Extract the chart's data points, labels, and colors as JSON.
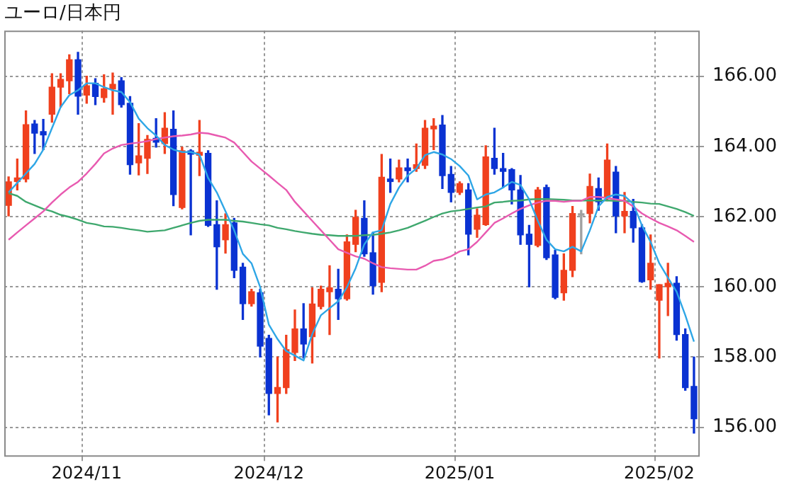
{
  "chart_data": {
    "type": "candlestick",
    "title": "ユーロ/日本円",
    "categories": [
      null,
      null,
      null,
      null,
      null,
      null,
      null,
      null,
      null,
      "2024/11",
      null,
      null,
      null,
      null,
      null,
      null,
      null,
      null,
      null,
      null,
      null,
      null,
      null,
      null,
      null,
      null,
      null,
      null,
      null,
      null,
      "2024/12",
      null,
      null,
      null,
      null,
      null,
      null,
      null,
      null,
      null,
      null,
      null,
      null,
      null,
      null,
      null,
      null,
      null,
      null,
      null,
      null,
      null,
      "2025/01",
      null,
      null,
      null,
      null,
      null,
      null,
      null,
      null,
      null,
      null,
      null,
      null,
      null,
      null,
      null,
      null,
      null,
      null,
      null,
      null,
      null,
      null,
      "2025/02",
      null,
      null,
      null,
      null
    ],
    "ohlc": [
      [
        162.32,
        163.13,
        162.02,
        162.99
      ],
      [
        163.0,
        163.64,
        162.76,
        163.1
      ],
      [
        163.07,
        165.01,
        162.99,
        164.62
      ],
      [
        164.64,
        164.74,
        163.8,
        164.38
      ],
      [
        164.42,
        164.77,
        163.91,
        164.33
      ],
      [
        164.92,
        166.07,
        164.69,
        165.69
      ],
      [
        165.69,
        166.07,
        165.12,
        165.91
      ],
      [
        165.87,
        166.61,
        165.5,
        166.47
      ],
      [
        166.47,
        166.68,
        164.92,
        165.43
      ],
      [
        165.46,
        166.0,
        165.23,
        165.73
      ],
      [
        165.8,
        165.93,
        165.19,
        165.42
      ],
      [
        165.39,
        166.04,
        165.26,
        165.64
      ],
      [
        165.64,
        166.09,
        164.92,
        165.77
      ],
      [
        165.87,
        165.96,
        165.12,
        165.19
      ],
      [
        165.23,
        165.42,
        163.21,
        163.48
      ],
      [
        163.53,
        164.65,
        163.19,
        163.73
      ],
      [
        163.66,
        164.31,
        163.23,
        164.2
      ],
      [
        164.23,
        164.79,
        163.98,
        164.12
      ],
      [
        164.08,
        164.96,
        163.8,
        164.52
      ],
      [
        164.49,
        165.01,
        162.31,
        162.63
      ],
      [
        162.26,
        163.98,
        162.22,
        163.88
      ],
      [
        163.87,
        163.91,
        161.48,
        163.78
      ],
      [
        163.75,
        164.74,
        163.17,
        163.83
      ],
      [
        163.8,
        163.88,
        161.72,
        161.75
      ],
      [
        161.77,
        162.45,
        159.93,
        161.14
      ],
      [
        161.34,
        162.08,
        160.96,
        161.77
      ],
      [
        161.82,
        161.95,
        160.26,
        160.47
      ],
      [
        160.56,
        160.67,
        159.07,
        159.52
      ],
      [
        159.52,
        159.93,
        159.45,
        159.86
      ],
      [
        159.83,
        159.93,
        158.0,
        158.31
      ],
      [
        158.53,
        158.62,
        156.35,
        156.96
      ],
      [
        156.96,
        158.0,
        156.15,
        157.13
      ],
      [
        157.13,
        158.62,
        156.96,
        158.21
      ],
      [
        158.13,
        159.34,
        157.9,
        158.8
      ],
      [
        158.8,
        159.52,
        157.97,
        158.37
      ],
      [
        158.58,
        159.97,
        157.83,
        159.51
      ],
      [
        159.44,
        160.02,
        159.37,
        159.93
      ],
      [
        159.86,
        160.6,
        158.64,
        159.97
      ],
      [
        159.93,
        160.5,
        159.07,
        159.66
      ],
      [
        159.66,
        161.48,
        159.62,
        161.28
      ],
      [
        161.21,
        162.18,
        161.0,
        161.98
      ],
      [
        161.95,
        162.45,
        160.87,
        160.94
      ],
      [
        160.97,
        161.55,
        159.79,
        160.03
      ],
      [
        160.13,
        163.77,
        159.86,
        163.12
      ],
      [
        163.07,
        163.64,
        162.69,
        163.0
      ],
      [
        163.07,
        163.61,
        162.99,
        163.39
      ],
      [
        163.39,
        163.64,
        162.99,
        163.31
      ],
      [
        163.37,
        164.07,
        163.29,
        163.48
      ],
      [
        163.46,
        164.74,
        163.37,
        164.52
      ],
      [
        164.5,
        164.79,
        163.91,
        164.58
      ],
      [
        164.61,
        164.88,
        162.8,
        163.17
      ],
      [
        163.2,
        163.43,
        162.42,
        162.69
      ],
      [
        162.69,
        162.99,
        162.63,
        162.94
      ],
      [
        162.76,
        162.94,
        160.91,
        161.5
      ],
      [
        161.64,
        162.22,
        161.41,
        162.04
      ],
      [
        161.77,
        164.02,
        161.75,
        163.7
      ],
      [
        163.66,
        164.52,
        163.21,
        163.37
      ],
      [
        163.37,
        163.8,
        162.83,
        163.29
      ],
      [
        163.34,
        163.37,
        162.36,
        162.76
      ],
      [
        162.76,
        163.17,
        161.21,
        161.48
      ],
      [
        161.5,
        161.75,
        160.0,
        161.21
      ],
      [
        161.18,
        162.83,
        161.14,
        162.76
      ],
      [
        162.83,
        162.9,
        160.78,
        160.83
      ],
      [
        160.91,
        161.04,
        159.66,
        159.7
      ],
      [
        159.83,
        160.94,
        159.62,
        160.47
      ],
      [
        160.47,
        162.29,
        160.29,
        162.09
      ],
      [
        162.04,
        162.18,
        160.94,
        162.04
      ],
      [
        162.09,
        163.21,
        161.82,
        162.86
      ],
      [
        162.8,
        163.1,
        162.18,
        162.42
      ],
      [
        162.56,
        164.07,
        162.45,
        163.61
      ],
      [
        163.27,
        163.43,
        161.54,
        162.02
      ],
      [
        162.02,
        162.69,
        161.54,
        162.15
      ],
      [
        162.15,
        162.49,
        161.27,
        161.68
      ],
      [
        161.68,
        161.77,
        160.13,
        160.15
      ],
      [
        160.2,
        161.48,
        159.93,
        160.67
      ],
      [
        159.62,
        160.06,
        157.97,
        160.06
      ],
      [
        160.0,
        160.67,
        159.18,
        160.1
      ],
      [
        160.1,
        160.29,
        158.48,
        158.64
      ],
      [
        158.64,
        158.8,
        157.05,
        157.13
      ],
      [
        157.16,
        158.0,
        155.83,
        156.24
      ]
    ],
    "colors": [
      "#f0401e",
      "#f0401e",
      "#f0401e",
      "#0a32d2",
      "#0a32d2",
      "#f0401e",
      "#f0401e",
      "#f0401e",
      "#0a32d2",
      "#f0401e",
      "#0a32d2",
      "#f0401e",
      "#f0401e",
      "#0a32d2",
      "#0a32d2",
      "#f0401e",
      "#f0401e",
      "#0a32d2",
      "#f0401e",
      "#0a32d2",
      "#f0401e",
      "#0a32d2",
      "#f0401e",
      "#0a32d2",
      "#0a32d2",
      "#f0401e",
      "#0a32d2",
      "#0a32d2",
      "#f0401e",
      "#0a32d2",
      "#0a32d2",
      "#f0401e",
      "#f0401e",
      "#f0401e",
      "#0a32d2",
      "#f0401e",
      "#f0401e",
      "#f0401e",
      "#0a32d2",
      "#f0401e",
      "#f0401e",
      "#0a32d2",
      "#0a32d2",
      "#f0401e",
      "#0a32d2",
      "#f0401e",
      "#0a32d2",
      "#f0401e",
      "#f0401e",
      "#f0401e",
      "#0a32d2",
      "#0a32d2",
      "#f0401e",
      "#0a32d2",
      "#f0401e",
      "#f0401e",
      "#0a32d2",
      "#0a32d2",
      "#0a32d2",
      "#0a32d2",
      "#0a32d2",
      "#f0401e",
      "#0a32d2",
      "#0a32d2",
      "#f0401e",
      "#f0401e",
      "#a0a0a0",
      "#f0401e",
      "#0a32d2",
      "#f0401e",
      "#0a32d2",
      "#f0401e",
      "#0a32d2",
      "#0a32d2",
      "#f0401e",
      "#f0401e",
      "#f0401e",
      "#0a32d2",
      "#0a32d2",
      "#0a32d2"
    ],
    "series": [
      {
        "type": "line",
        "color": "#2ea6e6",
        "values": [
          162.69,
          162.96,
          163.23,
          163.5,
          163.91,
          164.52,
          165.12,
          165.46,
          165.6,
          165.8,
          165.8,
          165.69,
          165.6,
          165.55,
          165.26,
          164.79,
          164.52,
          164.31,
          164.04,
          163.91,
          163.84,
          163.84,
          163.77,
          163.1,
          162.69,
          162.15,
          161.61,
          160.94,
          160.67,
          159.99,
          158.92,
          158.51,
          158.17,
          158.04,
          157.9,
          158.65,
          159.19,
          159.39,
          159.59,
          159.99,
          160.53,
          161.21,
          161.55,
          161.61,
          162.36,
          162.83,
          163.17,
          163.37,
          163.75,
          163.84,
          163.77,
          163.64,
          163.44,
          163.17,
          162.49,
          162.63,
          162.69,
          162.83,
          162.99,
          162.9,
          162.49,
          161.88,
          161.34,
          161.07,
          161.01,
          161.14,
          161.01,
          161.61,
          162.29,
          162.56,
          162.63,
          162.59,
          162.36,
          161.75,
          161.28,
          160.67,
          160.26,
          159.86,
          159.19,
          158.44
        ]
      },
      {
        "type": "line",
        "color": "#e85ab0",
        "values": [
          161.34,
          161.55,
          161.75,
          161.95,
          162.15,
          162.4,
          162.63,
          162.83,
          162.99,
          163.23,
          163.5,
          163.8,
          163.94,
          164.04,
          164.08,
          164.11,
          164.15,
          164.21,
          164.25,
          164.29,
          164.31,
          164.34,
          164.39,
          164.37,
          164.31,
          164.25,
          164.11,
          163.84,
          163.57,
          163.37,
          163.17,
          162.96,
          162.76,
          162.42,
          162.15,
          161.88,
          161.61,
          161.34,
          161.07,
          160.97,
          160.87,
          160.8,
          160.67,
          160.56,
          160.53,
          160.51,
          160.49,
          160.49,
          160.6,
          160.74,
          160.78,
          160.87,
          161.01,
          161.07,
          161.28,
          161.55,
          161.82,
          161.95,
          162.09,
          162.22,
          162.32,
          162.4,
          162.45,
          162.45,
          162.42,
          162.45,
          162.45,
          162.56,
          162.56,
          162.53,
          162.49,
          162.45,
          162.29,
          162.09,
          161.95,
          161.82,
          161.72,
          161.61,
          161.45,
          161.28
        ]
      },
      {
        "type": "line",
        "color": "#3fa86e",
        "values": [
          162.67,
          162.59,
          162.42,
          162.32,
          162.22,
          162.15,
          162.05,
          161.99,
          161.91,
          161.82,
          161.78,
          161.72,
          161.71,
          161.68,
          161.64,
          161.61,
          161.57,
          161.59,
          161.61,
          161.68,
          161.75,
          161.82,
          161.88,
          161.91,
          161.91,
          161.91,
          161.88,
          161.86,
          161.82,
          161.78,
          161.75,
          161.68,
          161.64,
          161.59,
          161.55,
          161.51,
          161.48,
          161.47,
          161.45,
          161.45,
          161.45,
          161.47,
          161.48,
          161.51,
          161.55,
          161.61,
          161.68,
          161.78,
          161.88,
          161.99,
          162.09,
          162.15,
          162.18,
          162.22,
          162.26,
          162.29,
          162.4,
          162.42,
          162.45,
          162.46,
          162.49,
          162.5,
          162.5,
          162.49,
          162.48,
          162.46,
          162.46,
          162.46,
          162.46,
          162.46,
          162.45,
          162.45,
          162.42,
          162.4,
          162.37,
          162.36,
          162.29,
          162.22,
          162.13,
          162.02
        ]
      }
    ],
    "ylim": [
      155.2,
      167.3
    ],
    "yticks": [
      {
        "value": 156,
        "label": "156.00"
      },
      {
        "value": 158,
        "label": "158.00"
      },
      {
        "value": 160,
        "label": "160.00"
      },
      {
        "value": 162,
        "label": "162.00"
      },
      {
        "value": 164,
        "label": "164.00"
      },
      {
        "value": 166,
        "label": "166.00"
      }
    ],
    "grid": true,
    "marker": "none"
  }
}
